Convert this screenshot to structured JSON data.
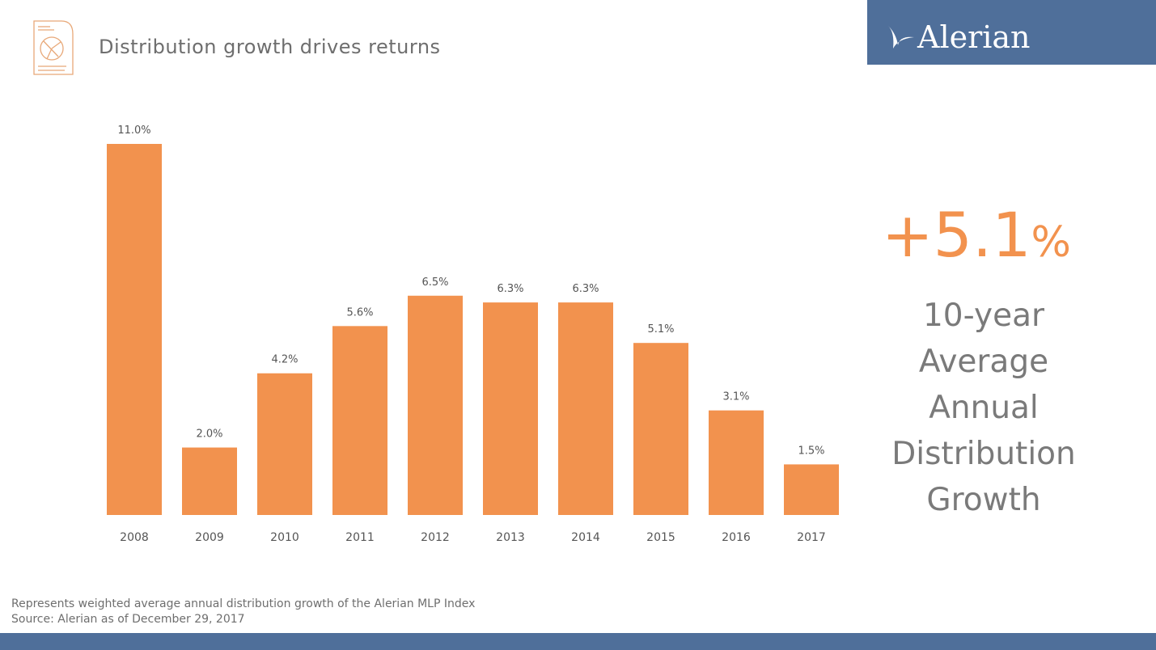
{
  "header": {
    "title": "Distribution growth drives returns",
    "logo": "Alerian",
    "icon": "document-pie-chart-icon"
  },
  "highlight": {
    "value": "+5.1",
    "unit": "%",
    "label_lines": [
      "10-year",
      "Average",
      "Annual",
      "Distribution",
      "Growth"
    ]
  },
  "footer": {
    "note": "Represents weighted average annual distribution growth of the Alerian MLP Index",
    "source": "Source: Alerian as of December 29, 2017"
  },
  "colors": {
    "bar": "#f2924e",
    "brand": "#4f6f9a",
    "text": "#6e6e6e"
  },
  "chart_data": {
    "type": "bar",
    "categories": [
      "2008",
      "2009",
      "2010",
      "2011",
      "2012",
      "2013",
      "2014",
      "2015",
      "2016",
      "2017"
    ],
    "values": [
      11.0,
      2.0,
      4.2,
      5.6,
      6.5,
      6.3,
      6.3,
      5.1,
      3.1,
      1.5
    ],
    "data_labels": [
      "11.0%",
      "2.0%",
      "4.2%",
      "5.6%",
      "6.5%",
      "6.3%",
      "6.3%",
      "5.1%",
      "3.1%",
      "1.5%"
    ],
    "title": "",
    "xlabel": "",
    "ylabel": "",
    "ylim": [
      0,
      11
    ],
    "grid": false,
    "legend": "none"
  }
}
